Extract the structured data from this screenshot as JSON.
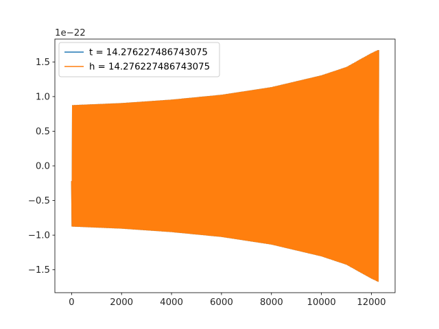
{
  "chart_data": {
    "type": "line",
    "title": "",
    "xlabel": "",
    "ylabel": "",
    "y_offset_label": "1e−22",
    "xlim": [
      -670,
      12950
    ],
    "ylim": [
      -1.83,
      1.83
    ],
    "x_ticks": [
      0,
      2000,
      4000,
      6000,
      8000,
      10000,
      12000
    ],
    "x_tick_labels": [
      "0",
      "2000",
      "4000",
      "6000",
      "8000",
      "10000",
      "12000"
    ],
    "y_ticks": [
      -1.5,
      -1.0,
      -0.5,
      0.0,
      0.5,
      1.0,
      1.5
    ],
    "y_tick_labels": [
      "−1.5",
      "−1.0",
      "−0.5",
      "0.0",
      "0.5",
      "1.0",
      "1.5"
    ],
    "legend_position": "top-left",
    "grid": false,
    "series": [
      {
        "name": "t = 14.276227486743075",
        "color": "#1f77b4",
        "x_range": [
          0,
          12290
        ],
        "envelope": {
          "x": [
            0,
            2000,
            4000,
            6000,
            8000,
            10000,
            11000,
            12000,
            12290
          ],
          "amplitude": [
            0.87,
            0.9,
            0.95,
            1.02,
            1.13,
            1.3,
            1.42,
            1.62,
            1.67
          ]
        },
        "start_value": -0.22,
        "end_value": 1.67,
        "cycles": 330
      },
      {
        "name": "h = 14.276227486743075",
        "color": "#ff7f0e",
        "x_range": [
          0,
          12290
        ],
        "envelope": {
          "x": [
            0,
            2000,
            4000,
            6000,
            8000,
            10000,
            11000,
            12000,
            12290
          ],
          "amplitude": [
            0.87,
            0.9,
            0.95,
            1.02,
            1.13,
            1.3,
            1.42,
            1.62,
            1.67
          ]
        },
        "start_value": -0.22,
        "end_value": 1.67,
        "cycles": 330
      }
    ]
  }
}
